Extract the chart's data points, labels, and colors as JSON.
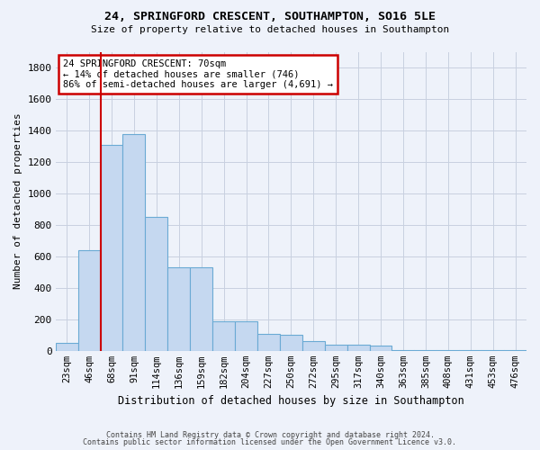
{
  "title_line1": "24, SPRINGFORD CRESCENT, SOUTHAMPTON, SO16 5LE",
  "title_line2": "Size of property relative to detached houses in Southampton",
  "xlabel": "Distribution of detached houses by size in Southampton",
  "ylabel": "Number of detached properties",
  "categories": [
    "23sqm",
    "46sqm",
    "68sqm",
    "91sqm",
    "114sqm",
    "136sqm",
    "159sqm",
    "182sqm",
    "204sqm",
    "227sqm",
    "250sqm",
    "272sqm",
    "295sqm",
    "317sqm",
    "340sqm",
    "363sqm",
    "385sqm",
    "408sqm",
    "431sqm",
    "453sqm",
    "476sqm"
  ],
  "values": [
    50,
    640,
    1310,
    1375,
    850,
    530,
    530,
    185,
    185,
    105,
    100,
    60,
    40,
    40,
    30,
    5,
    5,
    5,
    5,
    5,
    5
  ],
  "bar_color": "#c5d8f0",
  "bar_edge_color": "#6aaad4",
  "red_line_x": 1.5,
  "annotation_text": "24 SPRINGFORD CRESCENT: 70sqm\n← 14% of detached houses are smaller (746)\n86% of semi-detached houses are larger (4,691) →",
  "annotation_box_color": "#ffffff",
  "annotation_box_edge_color": "#cc0000",
  "ylim": [
    0,
    1900
  ],
  "yticks": [
    0,
    200,
    400,
    600,
    800,
    1000,
    1200,
    1400,
    1600,
    1800
  ],
  "footer_line1": "Contains HM Land Registry data © Crown copyright and database right 2024.",
  "footer_line2": "Contains public sector information licensed under the Open Government Licence v3.0.",
  "background_color": "#eef2fa",
  "grid_color": "#c8d0e0"
}
